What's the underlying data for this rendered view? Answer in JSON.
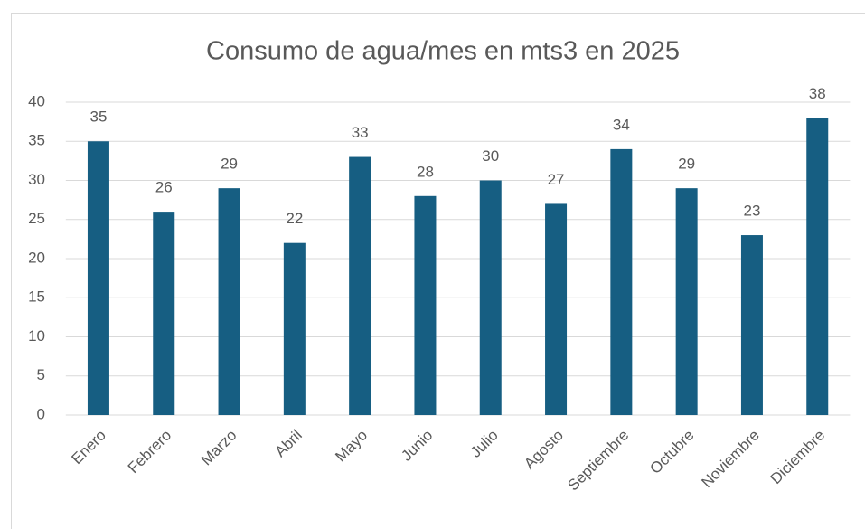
{
  "chart_data": {
    "type": "bar",
    "title": "Consumo de agua/mes en mts3 en 2025",
    "categories": [
      "Enero",
      "Febrero",
      "Marzo",
      "Abril",
      "Mayo",
      "Junio",
      "Julio",
      "Agosto",
      "Septiembre",
      "Octubre",
      "Noviembre",
      "Diciembre"
    ],
    "values": [
      35,
      26,
      29,
      22,
      33,
      28,
      30,
      27,
      34,
      29,
      23,
      38
    ],
    "color": "#165e82",
    "ylim": [
      0,
      40
    ],
    "yticks": [
      0,
      5,
      10,
      15,
      20,
      25,
      30,
      35,
      40
    ],
    "grid": true
  }
}
